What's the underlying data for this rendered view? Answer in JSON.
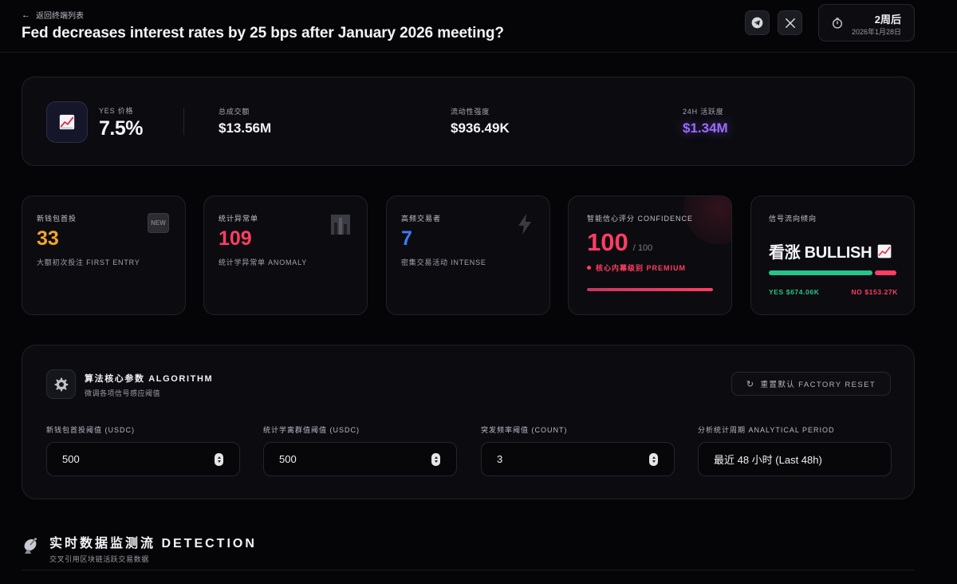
{
  "header": {
    "back_label": "返回终端列表",
    "title": "Fed decreases interest rates by 25 bps after January 2026 meeting?",
    "time_relative": "2周后",
    "time_date": "2026年1月28日",
    "icons": [
      "telegram-icon",
      "x-icon",
      "timer-icon"
    ]
  },
  "stats": {
    "yes_label": "YES 价格",
    "yes_value": "7.5%",
    "volume_label": "总成交额",
    "volume_value": "$13.56M",
    "liquidity_label": "流动性强度",
    "liquidity_value": "$936.49K",
    "activity_label": "24H 活跃度",
    "activity_value": "$1.34M",
    "accent_purple": "#9a6cff"
  },
  "cards": {
    "new_wallet": {
      "label": "新钱包首投",
      "value": "33",
      "sub": "大额初次投注 FIRST ENTRY",
      "badge": "NEW",
      "color": "#f5a623"
    },
    "anomaly": {
      "label": "统计异常单",
      "value": "109",
      "sub": "统计学异常单 ANOMALY",
      "color": "#ff3d63"
    },
    "hft": {
      "label": "高频交易者",
      "value": "7",
      "sub": "密集交易活动 INTENSE",
      "color": "#3d7bff"
    },
    "confidence": {
      "label": "智能信心评分 CONFIDENCE",
      "value": "100",
      "max": "/ 100",
      "tier": "核心内幕级别 PREMIUM",
      "progress": 1.0
    },
    "signal": {
      "label": "信号流向倾向",
      "direction": "看涨 BULLISH",
      "yes_label": "YES $674.06K",
      "no_label": "NO $153.27K",
      "yes_amount": 674.06,
      "no_amount": 153.27
    }
  },
  "algorithm": {
    "title": "算法核心参数 ALGORITHM",
    "subtitle": "微调各项信号感应阈值",
    "reset_label": "重置默认 FACTORY RESET",
    "fields": [
      {
        "label": "新钱包首投阈值 (USDC)",
        "value": "500"
      },
      {
        "label": "统计学离群值阈值 (USDC)",
        "value": "500"
      },
      {
        "label": "突发频率阈值 (COUNT)",
        "value": "3"
      },
      {
        "label": "分析统计周期 ANALYTICAL PERIOD",
        "value": "最近 48 小时 (Last 48h)"
      }
    ]
  },
  "detection": {
    "title": "实时数据监测流 DETECTION",
    "subtitle": "交叉引用区块链活跃交易数据"
  }
}
